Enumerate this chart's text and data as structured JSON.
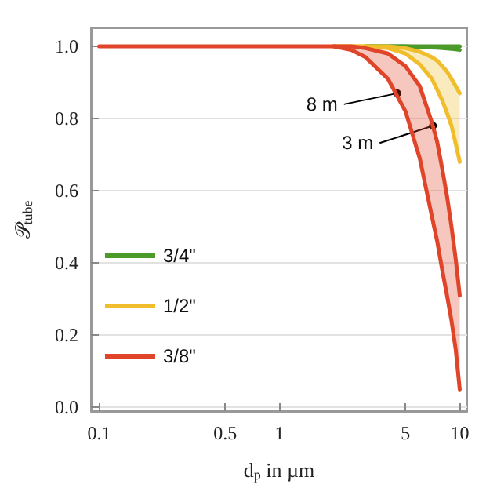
{
  "chart_data": {
    "type": "line",
    "xlabel": "d$_{p}$ in µm",
    "ylabel": "𝒫$_{tube}$",
    "x": [
      0.1,
      1,
      1.5,
      2,
      2.5,
      3,
      4,
      5,
      6,
      7,
      7.5,
      8,
      8.5,
      9,
      9.5,
      10
    ],
    "series": [
      {
        "name": "3/4\"",
        "color": "#4c9a2a",
        "values": [
          null,
          null,
          null,
          null,
          null,
          1,
          1,
          1,
          1,
          1,
          1,
          1,
          1,
          1,
          1,
          1
        ]
      },
      {
        "color": "#4c9a2a",
        "values": [
          null,
          null,
          null,
          null,
          null,
          1,
          1,
          1,
          0.998,
          0.997,
          0.996,
          0.995,
          0.994,
          0.993,
          0.992,
          0.99
        ]
      },
      {
        "name": "1/2\"",
        "color": "#f0be2c",
        "values": [
          null,
          null,
          null,
          1,
          1,
          1,
          1,
          0.995,
          0.985,
          0.97,
          0.96,
          0.945,
          0.93,
          0.91,
          0.89,
          0.87
        ],
        "upper": [
          1,
          1,
          1,
          1,
          1,
          1,
          1,
          0.995,
          0.985,
          0.97,
          0.96,
          0.945,
          0.93,
          0.91,
          0.89,
          0.87
        ],
        "lower": [
          1,
          1,
          1,
          1,
          1,
          1,
          0.995,
          0.98,
          0.95,
          0.91,
          0.88,
          0.85,
          0.815,
          0.78,
          0.73,
          0.68
        ]
      },
      {
        "color": "#f0be2c",
        "values": [
          null,
          null,
          null,
          1,
          1,
          1,
          0.995,
          0.98,
          0.95,
          0.91,
          0.88,
          0.85,
          0.815,
          0.78,
          0.73,
          0.68
        ]
      },
      {
        "name": "3/8\"",
        "color": "#e0452a",
        "values": [
          null,
          null,
          null,
          1,
          1,
          0.995,
          0.98,
          0.945,
          0.89,
          0.79,
          0.735,
          0.66,
          0.585,
          0.5,
          0.41,
          0.31
        ],
        "upper": [
          1,
          1,
          1,
          1,
          1,
          0.995,
          0.98,
          0.945,
          0.89,
          0.79,
          0.735,
          0.66,
          0.585,
          0.5,
          0.41,
          0.31
        ],
        "lower": [
          1,
          1,
          1,
          1,
          0.99,
          0.97,
          0.91,
          0.82,
          0.69,
          0.53,
          0.46,
          0.38,
          0.31,
          0.24,
          0.16,
          0.05
        ]
      },
      {
        "color": "#e0452a",
        "values": [
          1,
          1,
          1,
          1,
          0.99,
          0.97,
          0.91,
          0.82,
          0.69,
          0.53,
          0.46,
          0.38,
          0.31,
          0.24,
          0.16,
          0.05
        ]
      }
    ],
    "annotations": [
      {
        "text": "8 m",
        "x": 4.5,
        "y": 0.87
      },
      {
        "text": "3 m",
        "x": 7.1,
        "y": 0.78
      }
    ],
    "log": "x",
    "xlim": [
      0.09,
      11
    ],
    "xticks": [
      0.1,
      0.5,
      1,
      5,
      10
    ],
    "ylim": [
      -0.01,
      1.05
    ],
    "yticks": [
      {
        "value": 0,
        "label": "0.0"
      },
      0.2,
      0.4,
      0.6,
      0.8,
      {
        "value": 1,
        "label": "1.0"
      }
    ],
    "grid": "y",
    "legend": "bottom left",
    "marker": "none",
    "line_style": "solid"
  }
}
